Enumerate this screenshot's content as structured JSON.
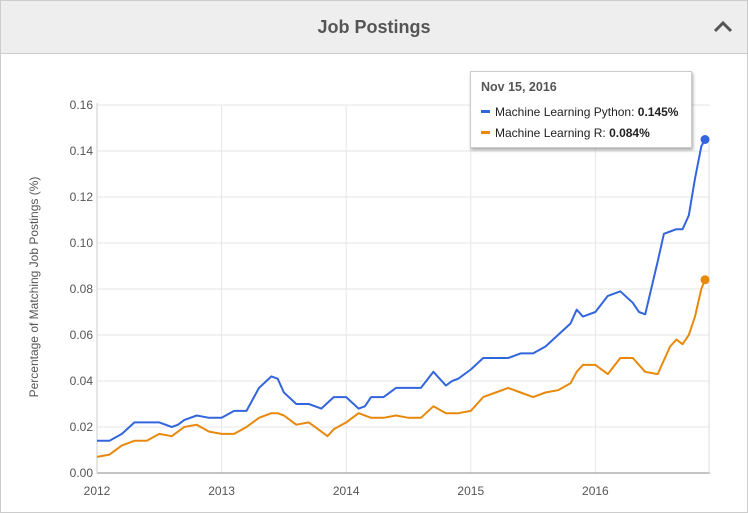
{
  "panel": {
    "title": "Job Postings"
  },
  "tooltip": {
    "date": "Nov 15, 2016",
    "rows": [
      {
        "label": "Machine Learning Python",
        "value": "0.145%"
      },
      {
        "label": "Machine Learning R",
        "value": "0.084%"
      }
    ]
  },
  "colors": {
    "python": "#3366dd",
    "r": "#e8890c"
  },
  "icons": {
    "collapse": "chevron-up-icon"
  },
  "chart_data": {
    "type": "line",
    "ylabel": "Percentage of Matching Job Postings (%)",
    "xlabel": "",
    "ylim": [
      0,
      0.16
    ],
    "xlim": [
      2012.0,
      2016.92
    ],
    "grid": true,
    "yticks": [
      "0.00",
      "0.02",
      "0.04",
      "0.06",
      "0.08",
      "0.10",
      "0.12",
      "0.14",
      "0.16"
    ],
    "xticks": [
      {
        "value": 2012,
        "label": "2012"
      },
      {
        "value": 2013,
        "label": "2013"
      },
      {
        "value": 2014,
        "label": "2014"
      },
      {
        "value": 2015,
        "label": "2015"
      },
      {
        "value": 2016,
        "label": "2016"
      }
    ],
    "series": [
      {
        "name": "Machine Learning Python",
        "x": [
          2012.0,
          2012.1,
          2012.2,
          2012.3,
          2012.4,
          2012.5,
          2012.6,
          2012.65,
          2012.7,
          2012.8,
          2012.9,
          2013.0,
          2013.1,
          2013.2,
          2013.3,
          2013.4,
          2013.45,
          2013.5,
          2013.6,
          2013.7,
          2013.8,
          2013.9,
          2014.0,
          2014.1,
          2014.15,
          2014.2,
          2014.3,
          2014.4,
          2014.5,
          2014.6,
          2014.7,
          2014.8,
          2014.85,
          2014.9,
          2015.0,
          2015.1,
          2015.2,
          2015.3,
          2015.4,
          2015.5,
          2015.6,
          2015.7,
          2015.8,
          2015.85,
          2015.9,
          2016.0,
          2016.1,
          2016.2,
          2016.3,
          2016.35,
          2016.4,
          2016.5,
          2016.55,
          2016.6,
          2016.65,
          2016.7,
          2016.75,
          2016.8,
          2016.85,
          2016.88
        ],
        "values": [
          0.014,
          0.014,
          0.017,
          0.022,
          0.022,
          0.022,
          0.02,
          0.021,
          0.023,
          0.025,
          0.024,
          0.024,
          0.027,
          0.027,
          0.037,
          0.042,
          0.041,
          0.035,
          0.03,
          0.03,
          0.028,
          0.033,
          0.033,
          0.028,
          0.029,
          0.033,
          0.033,
          0.037,
          0.037,
          0.037,
          0.044,
          0.038,
          0.04,
          0.041,
          0.045,
          0.05,
          0.05,
          0.05,
          0.052,
          0.052,
          0.055,
          0.06,
          0.065,
          0.071,
          0.068,
          0.07,
          0.077,
          0.079,
          0.074,
          0.07,
          0.069,
          0.092,
          0.104,
          0.105,
          0.106,
          0.106,
          0.112,
          0.128,
          0.142,
          0.145
        ]
      },
      {
        "name": "Machine Learning R",
        "x": [
          2012.0,
          2012.1,
          2012.2,
          2012.3,
          2012.4,
          2012.5,
          2012.6,
          2012.65,
          2012.7,
          2012.8,
          2012.9,
          2013.0,
          2013.1,
          2013.2,
          2013.3,
          2013.4,
          2013.45,
          2013.5,
          2013.6,
          2013.7,
          2013.8,
          2013.85,
          2013.9,
          2014.0,
          2014.1,
          2014.2,
          2014.3,
          2014.4,
          2014.5,
          2014.6,
          2014.7,
          2014.8,
          2014.9,
          2015.0,
          2015.1,
          2015.2,
          2015.3,
          2015.4,
          2015.5,
          2015.6,
          2015.7,
          2015.8,
          2015.85,
          2015.9,
          2016.0,
          2016.1,
          2016.2,
          2016.3,
          2016.35,
          2016.4,
          2016.5,
          2016.6,
          2016.65,
          2016.7,
          2016.75,
          2016.8,
          2016.85,
          2016.88
        ],
        "values": [
          0.007,
          0.008,
          0.012,
          0.014,
          0.014,
          0.017,
          0.016,
          0.018,
          0.02,
          0.021,
          0.018,
          0.017,
          0.017,
          0.02,
          0.024,
          0.026,
          0.026,
          0.025,
          0.021,
          0.022,
          0.018,
          0.016,
          0.019,
          0.022,
          0.026,
          0.024,
          0.024,
          0.025,
          0.024,
          0.024,
          0.029,
          0.026,
          0.026,
          0.027,
          0.033,
          0.035,
          0.037,
          0.035,
          0.033,
          0.035,
          0.036,
          0.039,
          0.044,
          0.047,
          0.047,
          0.043,
          0.05,
          0.05,
          0.047,
          0.044,
          0.043,
          0.055,
          0.058,
          0.056,
          0.06,
          0.068,
          0.08,
          0.084
        ]
      }
    ]
  }
}
